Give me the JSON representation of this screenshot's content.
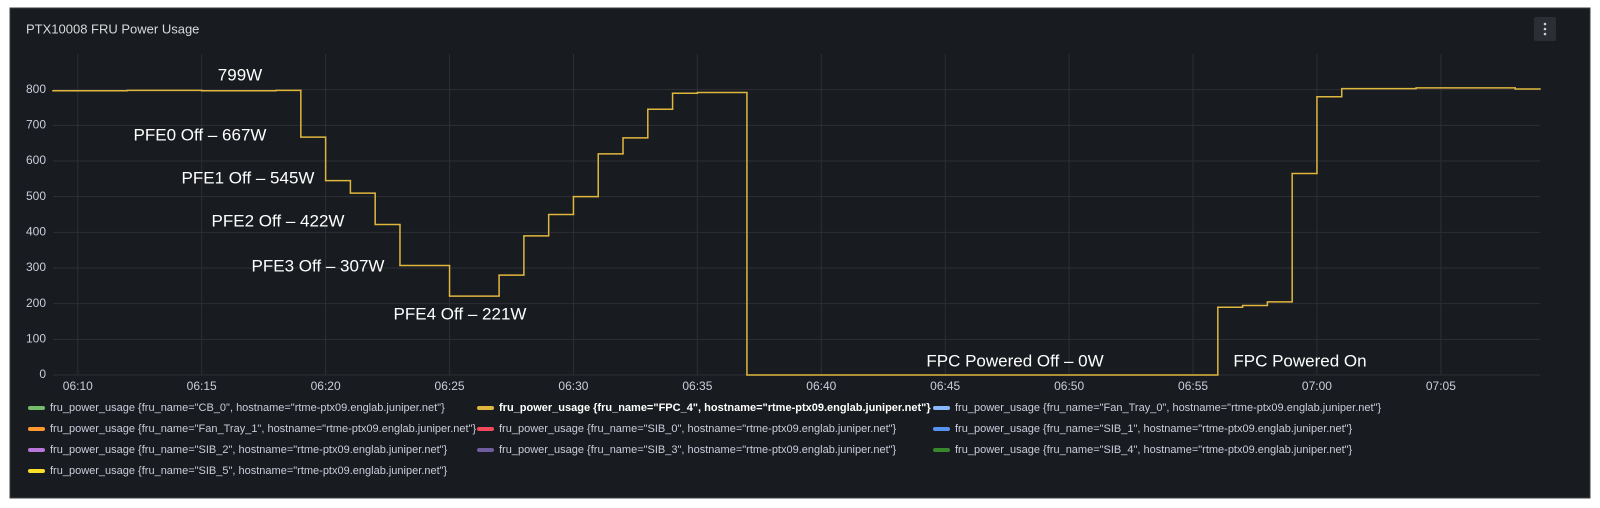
{
  "chart_data": {
    "type": "line",
    "title": "PTX10008 FRU Power Usage",
    "step": "after",
    "grid": true,
    "x": [
      "06:09",
      "06:12",
      "06:15",
      "06:18",
      "06:19",
      "06:20",
      "06:21",
      "06:22",
      "06:23",
      "06:25",
      "06:27",
      "06:28",
      "06:29",
      "06:30",
      "06:31",
      "06:32",
      "06:33",
      "06:34",
      "06:35",
      "06:37",
      "06:56",
      "06:57",
      "06:58",
      "06:59",
      "07:00",
      "07:01",
      "07:04",
      "07:08"
    ],
    "xlim": [
      "06:09",
      "07:09"
    ],
    "xticks": [
      "06:10",
      "06:15",
      "06:20",
      "06:25",
      "06:30",
      "06:35",
      "06:40",
      "06:45",
      "06:50",
      "06:55",
      "07:00",
      "07:05"
    ],
    "ylim": [
      0,
      900
    ],
    "yticks": [
      0,
      100,
      200,
      300,
      400,
      500,
      600,
      700,
      800
    ],
    "series": [
      {
        "name": "fru_power_usage {fru_name=\"CB_0\", hostname=\"rtme-ptx09.englab.juniper.net\"}",
        "color": "#73bf69",
        "values": [
          null,
          null,
          null,
          null,
          null,
          null,
          null,
          null,
          null,
          null,
          null,
          null,
          null,
          null,
          null,
          null,
          null,
          null,
          null,
          null,
          null,
          null,
          null,
          null,
          null,
          null,
          null,
          null
        ]
      },
      {
        "name": "fru_power_usage {fru_name=\"FPC_4\", hostname=\"rtme-ptx09.englab.juniper.net\"}",
        "color": "#e0b73e",
        "values": [
          797,
          798,
          797,
          798,
          667,
          545,
          510,
          422,
          307,
          221,
          280,
          390,
          450,
          500,
          620,
          665,
          745,
          790,
          792,
          0,
          190,
          195,
          205,
          565,
          780,
          803,
          805,
          802
        ]
      },
      {
        "name": "fru_power_usage {fru_name=\"Fan_Tray_0\", hostname=\"rtme-ptx09.englab.juniper.net\"}",
        "color": "#8ab8ff",
        "values": [
          null,
          null,
          null,
          null,
          null,
          null,
          null,
          null,
          null,
          null,
          null,
          null,
          null,
          null,
          null,
          null,
          null,
          null,
          null,
          null,
          null,
          null,
          null,
          null,
          null,
          null,
          null,
          null
        ]
      },
      {
        "name": "fru_power_usage {fru_name=\"Fan_Tray_1\", hostname=\"rtme-ptx09.englab.juniper.net\"}",
        "color": "#ff9830",
        "values": [
          null,
          null,
          null,
          null,
          null,
          null,
          null,
          null,
          null,
          null,
          null,
          null,
          null,
          null,
          null,
          null,
          null,
          null,
          null,
          null,
          null,
          null,
          null,
          null,
          null,
          null,
          null,
          null
        ]
      },
      {
        "name": "fru_power_usage {fru_name=\"SIB_0\", hostname=\"rtme-ptx09.englab.juniper.net\"}",
        "color": "#f2495c",
        "values": [
          null,
          null,
          null,
          null,
          null,
          null,
          null,
          null,
          null,
          null,
          null,
          null,
          null,
          null,
          null,
          null,
          null,
          null,
          null,
          null,
          null,
          null,
          null,
          null,
          null,
          null,
          null,
          null
        ]
      },
      {
        "name": "fru_power_usage {fru_name=\"SIB_1\", hostname=\"rtme-ptx09.englab.juniper.net\"}",
        "color": "#5794f2",
        "values": [
          null,
          null,
          null,
          null,
          null,
          null,
          null,
          null,
          null,
          null,
          null,
          null,
          null,
          null,
          null,
          null,
          null,
          null,
          null,
          null,
          null,
          null,
          null,
          null,
          null,
          null,
          null,
          null
        ]
      },
      {
        "name": "fru_power_usage {fru_name=\"SIB_2\", hostname=\"rtme-ptx09.englab.juniper.net\"}",
        "color": "#b877d9",
        "values": [
          null,
          null,
          null,
          null,
          null,
          null,
          null,
          null,
          null,
          null,
          null,
          null,
          null,
          null,
          null,
          null,
          null,
          null,
          null,
          null,
          null,
          null,
          null,
          null,
          null,
          null,
          null,
          null
        ]
      },
      {
        "name": "fru_power_usage {fru_name=\"SIB_3\", hostname=\"rtme-ptx09.englab.juniper.net\"}",
        "color": "#705da0",
        "values": [
          null,
          null,
          null,
          null,
          null,
          null,
          null,
          null,
          null,
          null,
          null,
          null,
          null,
          null,
          null,
          null,
          null,
          null,
          null,
          null,
          null,
          null,
          null,
          null,
          null,
          null,
          null,
          null
        ]
      },
      {
        "name": "fru_power_usage {fru_name=\"SIB_4\", hostname=\"rtme-ptx09.englab.juniper.net\"}",
        "color": "#37872d",
        "values": [
          null,
          null,
          null,
          null,
          null,
          null,
          null,
          null,
          null,
          null,
          null,
          null,
          null,
          null,
          null,
          null,
          null,
          null,
          null,
          null,
          null,
          null,
          null,
          null,
          null,
          null,
          null,
          null
        ]
      },
      {
        "name": "fru_power_usage {fru_name=\"SIB_5\", hostname=\"rtme-ptx09.englab.juniper.net\"}",
        "color": "#fade2a",
        "values": [
          null,
          null,
          null,
          null,
          null,
          null,
          null,
          null,
          null,
          null,
          null,
          null,
          null,
          null,
          null,
          null,
          null,
          null,
          null,
          null,
          null,
          null,
          null,
          null,
          null,
          null,
          null,
          null
        ]
      }
    ],
    "annotations": [
      "799W",
      "PFE0 Off – 667W",
      "PFE1 Off – 545W",
      "PFE2 Off – 422W",
      "PFE3 Off – 307W",
      "PFE4 Off – 221W",
      "FPC Powered Off – 0W",
      "FPC Powered On"
    ]
  }
}
